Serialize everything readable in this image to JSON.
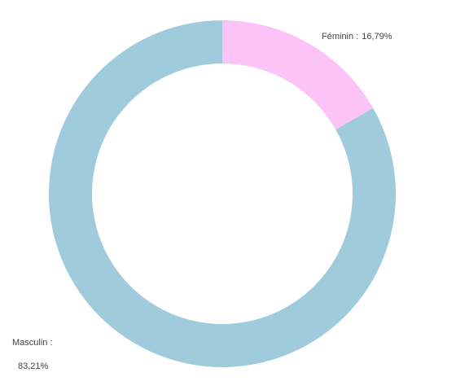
{
  "chart_data": {
    "type": "donut",
    "categories": [
      "Féminin :",
      "Masculin :"
    ],
    "values": [
      16.79,
      83.21
    ],
    "value_labels": [
      "16,79%",
      "83,21%"
    ],
    "colors": [
      "#fcc3f8",
      "#9fcbdc"
    ]
  }
}
